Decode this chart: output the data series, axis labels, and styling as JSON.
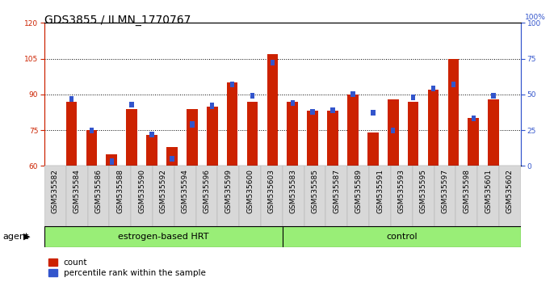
{
  "title": "GDS3855 / ILMN_1770767",
  "samples": [
    "GSM535582",
    "GSM535584",
    "GSM535586",
    "GSM535588",
    "GSM535590",
    "GSM535592",
    "GSM535594",
    "GSM535596",
    "GSM535599",
    "GSM535600",
    "GSM535603",
    "GSM535583",
    "GSM535585",
    "GSM535587",
    "GSM535589",
    "GSM535591",
    "GSM535593",
    "GSM535595",
    "GSM535597",
    "GSM535598",
    "GSM535601",
    "GSM535602"
  ],
  "red_values": [
    87,
    75,
    65,
    84,
    73,
    68,
    84,
    85,
    95,
    87,
    107,
    87,
    83,
    83,
    90,
    74,
    88,
    87,
    92,
    105,
    80,
    88
  ],
  "blue_percentile": [
    47,
    25,
    3,
    43,
    22,
    5,
    29,
    42,
    57,
    49,
    72,
    44,
    38,
    39,
    50,
    37,
    25,
    48,
    54,
    57,
    33,
    49
  ],
  "group1_count": 11,
  "group2_count": 11,
  "group1_label": "estrogen-based HRT",
  "group2_label": "control",
  "agent_label": "agent",
  "ylim_left": [
    60,
    120
  ],
  "ylim_right": [
    0,
    100
  ],
  "yticks_left": [
    60,
    75,
    90,
    105,
    120
  ],
  "yticks_right": [
    0,
    25,
    50,
    75,
    100
  ],
  "bar_color": "#cc2200",
  "blue_color": "#3355cc",
  "bg_color": "#d8d8d8",
  "green_color": "#99ee77",
  "legend_count_label": "count",
  "legend_pct_label": "percentile rank within the sample",
  "title_fontsize": 10,
  "tick_fontsize": 6.5,
  "label_fontsize": 8
}
